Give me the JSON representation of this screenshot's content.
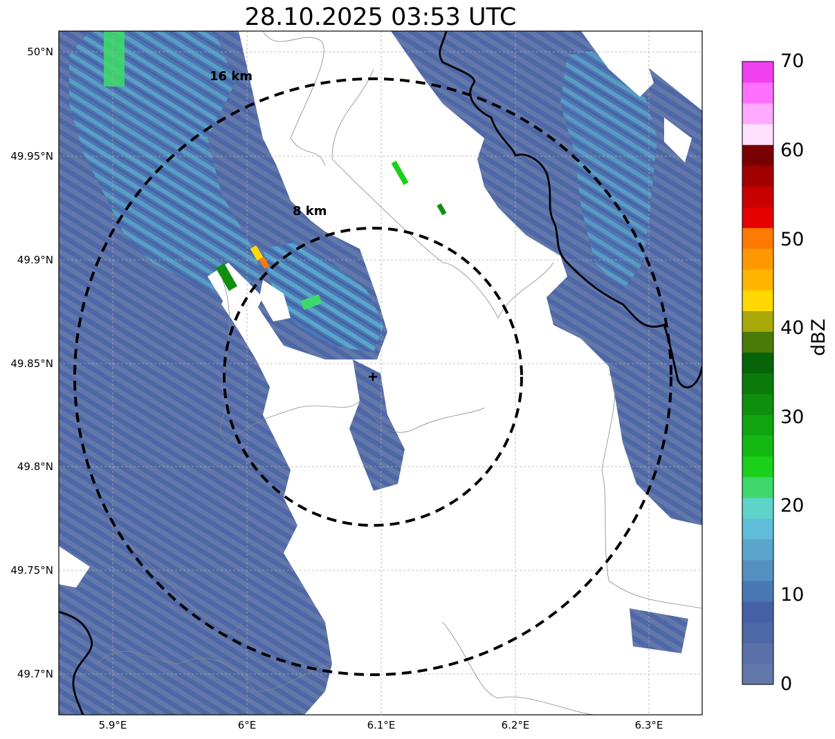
{
  "title": "28.10.2025 03:53 UTC",
  "map": {
    "lon_range": [
      5.86,
      6.34
    ],
    "lat_range": [
      49.68,
      50.01
    ],
    "radar_site": {
      "lon": 6.095,
      "lat": 49.843
    },
    "x_ticks": [
      "5.9°E",
      "6°E",
      "6.1°E",
      "6.2°E",
      "6.3°E"
    ],
    "x_tick_values": [
      5.9,
      6.0,
      6.1,
      6.2,
      6.3
    ],
    "y_ticks": [
      "50°N",
      "49.95°N",
      "49.9°N",
      "49.85°N",
      "49.8°N",
      "49.75°N",
      "49.7°N"
    ],
    "y_tick_values": [
      50.0,
      49.95,
      49.9,
      49.85,
      49.8,
      49.75,
      49.7
    ],
    "gridlines": true,
    "range_rings": [
      {
        "label": "8 km",
        "radius_km": 8
      },
      {
        "label": "16 km",
        "radius_km": 16
      }
    ]
  },
  "colorbar": {
    "label": "dBZ",
    "ticks": [
      "0",
      "10",
      "20",
      "30",
      "40",
      "50",
      "60",
      "70"
    ],
    "range": [
      0,
      70
    ],
    "colors": [
      "#6378aa",
      "#5a70a8",
      "#4e67a6",
      "#4560a7",
      "#4a78b2",
      "#5590c0",
      "#5aa5cb",
      "#60bcd8",
      "#5ed3c8",
      "#3ed86a",
      "#1ad01a",
      "#13b813",
      "#10a410",
      "#0e8f0e",
      "#0b7a0b",
      "#086408",
      "#4a7a08",
      "#a8a808",
      "#ffd800",
      "#ffb400",
      "#ff9800",
      "#ff7a00",
      "#e60000",
      "#c80000",
      "#a00000",
      "#780000",
      "#ffe0ff",
      "#ffaaff",
      "#ff70ff",
      "#f040f0"
    ]
  }
}
